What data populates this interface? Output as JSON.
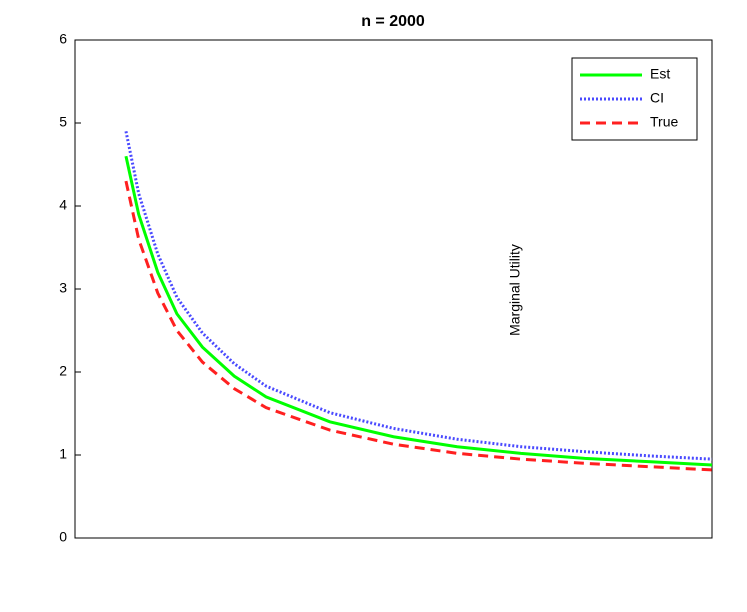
{
  "chart_data": {
    "type": "line",
    "title": "n = 2000",
    "ylabel": "Marginal Utility",
    "x": [
      0.08,
      0.1,
      0.13,
      0.16,
      0.2,
      0.25,
      0.3,
      0.4,
      0.5,
      0.6,
      0.7,
      0.8,
      0.9,
      1.0
    ],
    "series": [
      {
        "name": "Est",
        "color": "#00ff00",
        "style": "solid",
        "values": [
          4.6,
          3.9,
          3.2,
          2.7,
          2.3,
          1.95,
          1.7,
          1.4,
          1.22,
          1.1,
          1.02,
          0.96,
          0.92,
          0.88
        ]
      },
      {
        "name": "CI",
        "color": "#4a4aff",
        "style": "dotted",
        "values": [
          4.9,
          4.15,
          3.42,
          2.9,
          2.47,
          2.1,
          1.83,
          1.51,
          1.32,
          1.19,
          1.1,
          1.04,
          0.99,
          0.95
        ]
      },
      {
        "name": "True",
        "color": "#ff2020",
        "style": "dashed",
        "values": [
          4.3,
          3.6,
          2.95,
          2.5,
          2.12,
          1.8,
          1.57,
          1.3,
          1.13,
          1.02,
          0.95,
          0.9,
          0.86,
          0.82
        ]
      }
    ],
    "xlim": [
      0,
      1
    ],
    "ylim": [
      0,
      6
    ],
    "yticks": [
      0,
      1,
      2,
      3,
      4,
      5,
      6
    ],
    "legend": "northeast"
  }
}
